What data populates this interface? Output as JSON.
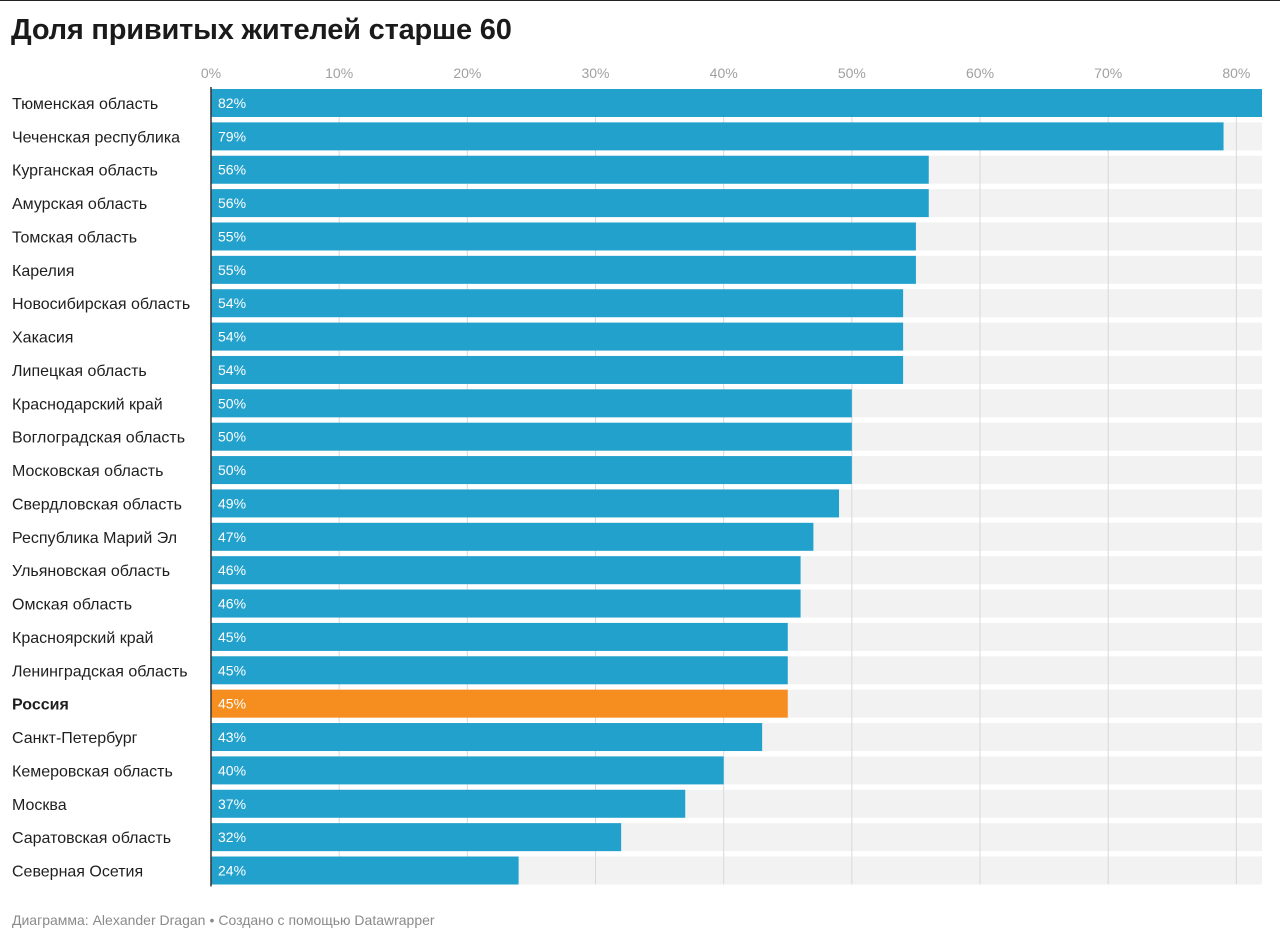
{
  "title": "Доля привитых жителей старше 60",
  "footer": {
    "chart_by": "Диаграмма: Alexander Dragan",
    "separator": "•",
    "made_with": "Создано с помощью Datawrapper"
  },
  "colors": {
    "bar": "#22a1cc",
    "highlight": "#f68d1f",
    "track": "#f2f2f2",
    "grid": "#d9d9d9"
  },
  "chart_data": {
    "type": "bar",
    "orientation": "horizontal",
    "title": "Доля привитых жителей старше 60",
    "xlabel": "",
    "ylabel": "",
    "xlim": [
      0,
      82
    ],
    "ticks": [
      0,
      10,
      20,
      30,
      40,
      50,
      60,
      70,
      80
    ],
    "tick_labels": [
      "0%",
      "10%",
      "20%",
      "30%",
      "40%",
      "50%",
      "60%",
      "70%",
      "80%"
    ],
    "unit": "%",
    "categories": [
      "Тюменская область",
      "Чеченская республика",
      "Курганская область",
      "Амурская область",
      "Томская область",
      "Карелия",
      "Новосибирская область",
      "Хакасия",
      "Липецкая область",
      "Краснодарский край",
      "Воглоградская область",
      "Московская область",
      "Свердловская область",
      "Республика Марий Эл",
      "Ульяновская область",
      "Омская область",
      "Красноярский край",
      "Ленинградская область",
      "Россия",
      "Санкт-Петербург",
      "Кемеровская область",
      "Москва",
      "Саратовская область",
      "Северная Осетия"
    ],
    "values": [
      82,
      79,
      56,
      56,
      55,
      55,
      54,
      54,
      54,
      50,
      50,
      50,
      49,
      47,
      46,
      46,
      45,
      45,
      45,
      43,
      40,
      37,
      32,
      24
    ],
    "value_labels": [
      "82%",
      "79%",
      "56%",
      "56%",
      "55%",
      "55%",
      "54%",
      "54%",
      "54%",
      "50%",
      "50%",
      "50%",
      "49%",
      "47%",
      "46%",
      "46%",
      "45%",
      "45%",
      "45%",
      "43%",
      "40%",
      "37%",
      "32%",
      "24%"
    ],
    "highlight": "Россия",
    "grid": true,
    "legend": "none"
  }
}
